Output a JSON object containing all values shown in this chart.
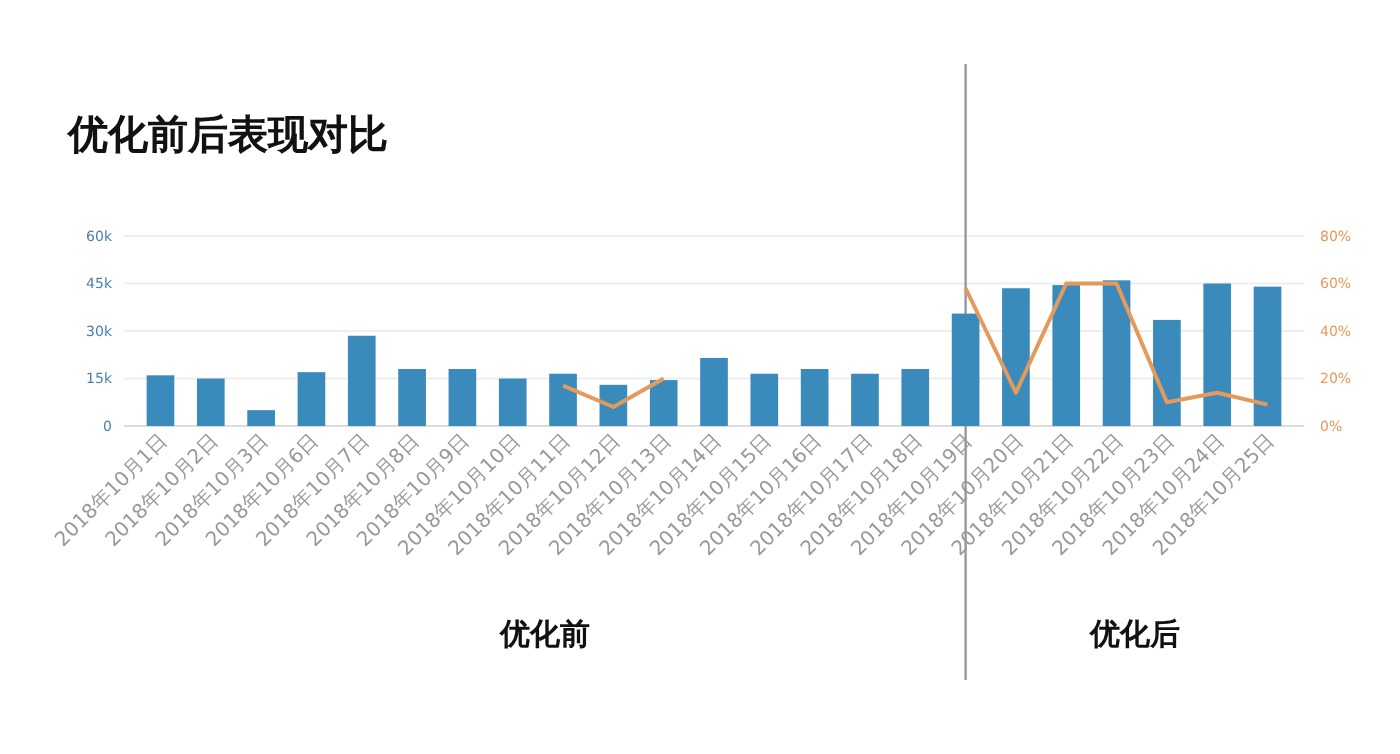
{
  "chart_data": {
    "type": "bar",
    "title": "优化前后表现对比",
    "categories": [
      "2018年10月1日",
      "2018年10月2日",
      "2018年10月3日",
      "2018年10月6日",
      "2018年10月7日",
      "2018年10月8日",
      "2018年10月9日",
      "2018年10月10日",
      "2018年10月11日",
      "2018年10月12日",
      "2018年10月13日",
      "2018年10月14日",
      "2018年10月15日",
      "2018年10月16日",
      "2018年10月17日",
      "2018年10月18日",
      "2018年10月19日",
      "2018年10月20日",
      "2018年10月21日",
      "2018年10月22日",
      "2018年10月23日",
      "2018年10月24日",
      "2018年10月25日"
    ],
    "series": [
      {
        "color": "#3a8bbb",
        "values": [
          16000,
          15000,
          5000,
          17000,
          28500,
          18000,
          18000,
          15000,
          16500,
          13000,
          14500,
          21500,
          16500,
          18000,
          16500,
          18000,
          35500,
          43500,
          44500,
          46000,
          33500,
          45000,
          44000
        ]
      },
      {
        "type": "line",
        "axis": "y2",
        "color": "#e39a5a",
        "values": [
          null,
          null,
          null,
          null,
          null,
          null,
          null,
          null,
          17,
          8,
          20,
          null,
          null,
          null,
          null,
          null,
          58,
          14,
          60,
          60,
          10,
          14,
          9
        ]
      }
    ],
    "ylim": [
      0,
      60000
    ],
    "yticks": [
      0,
      {
        "value": 15000,
        "label": "15k"
      },
      {
        "value": 30000,
        "label": "30k"
      },
      {
        "value": 45000,
        "label": "45k"
      },
      {
        "value": 60000,
        "label": "60k"
      }
    ],
    "y2lim": [
      0,
      80
    ],
    "y2ticks": [
      {
        "value": 0,
        "label": "0%"
      },
      {
        "value": 20,
        "label": "20%"
      },
      {
        "value": 40,
        "label": "40%"
      },
      {
        "value": 60,
        "label": "60%"
      },
      {
        "value": 80,
        "label": "80%"
      }
    ],
    "grid": "y",
    "marker": "none",
    "line_style": "solid",
    "ref_lines": [
      {
        "axis": "x",
        "value": "2018年10月19日",
        "color": "#999999"
      }
    ],
    "annotations": [
      "优化前",
      "优化后"
    ]
  }
}
